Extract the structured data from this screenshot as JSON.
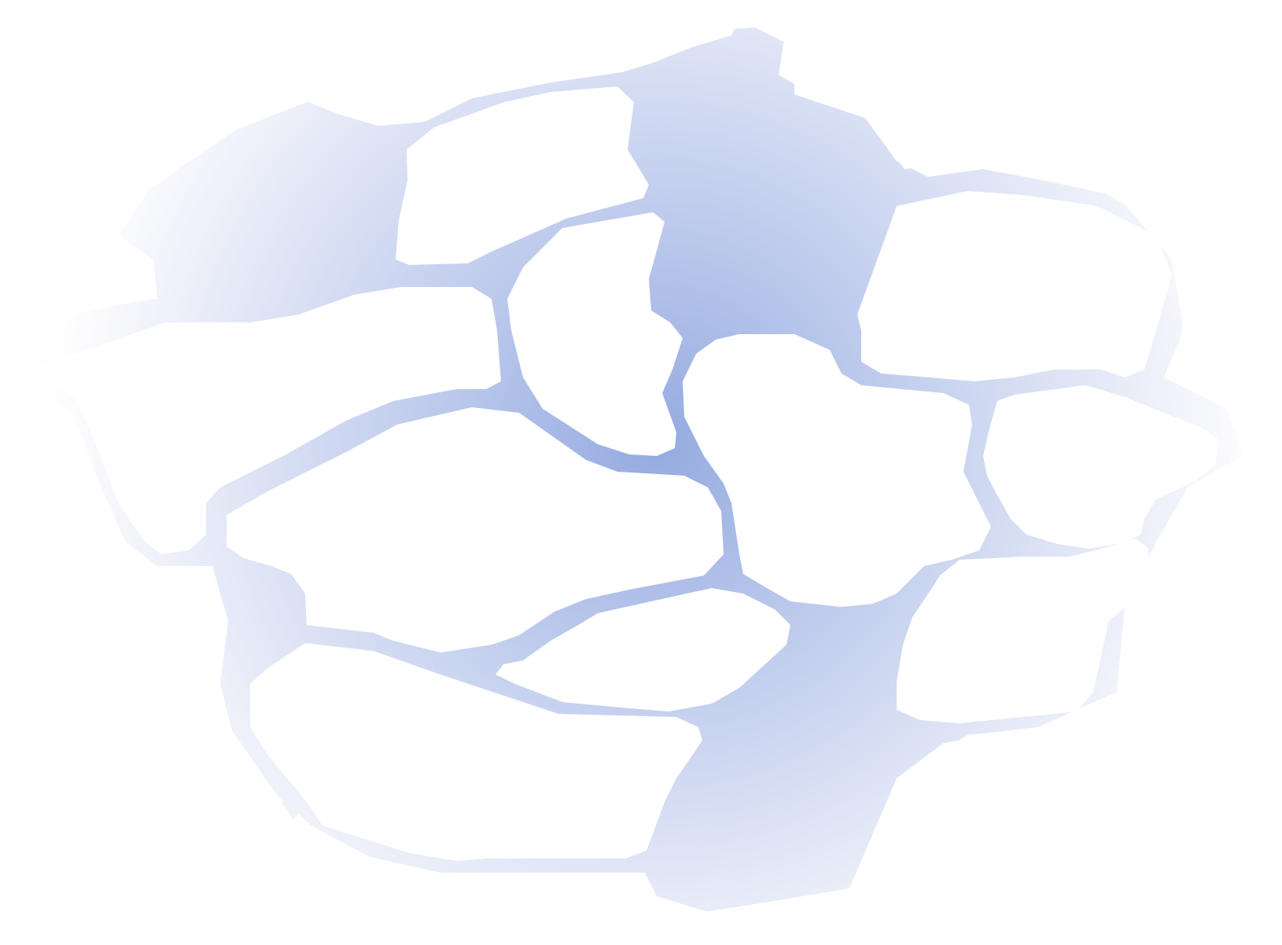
{
  "graphic": {
    "subject": "cell-network-pattern",
    "colors": {
      "background": "#ffffff",
      "center": "#94aae0",
      "mid": "#c3cfee",
      "edge": "#f6f7fc"
    }
  }
}
